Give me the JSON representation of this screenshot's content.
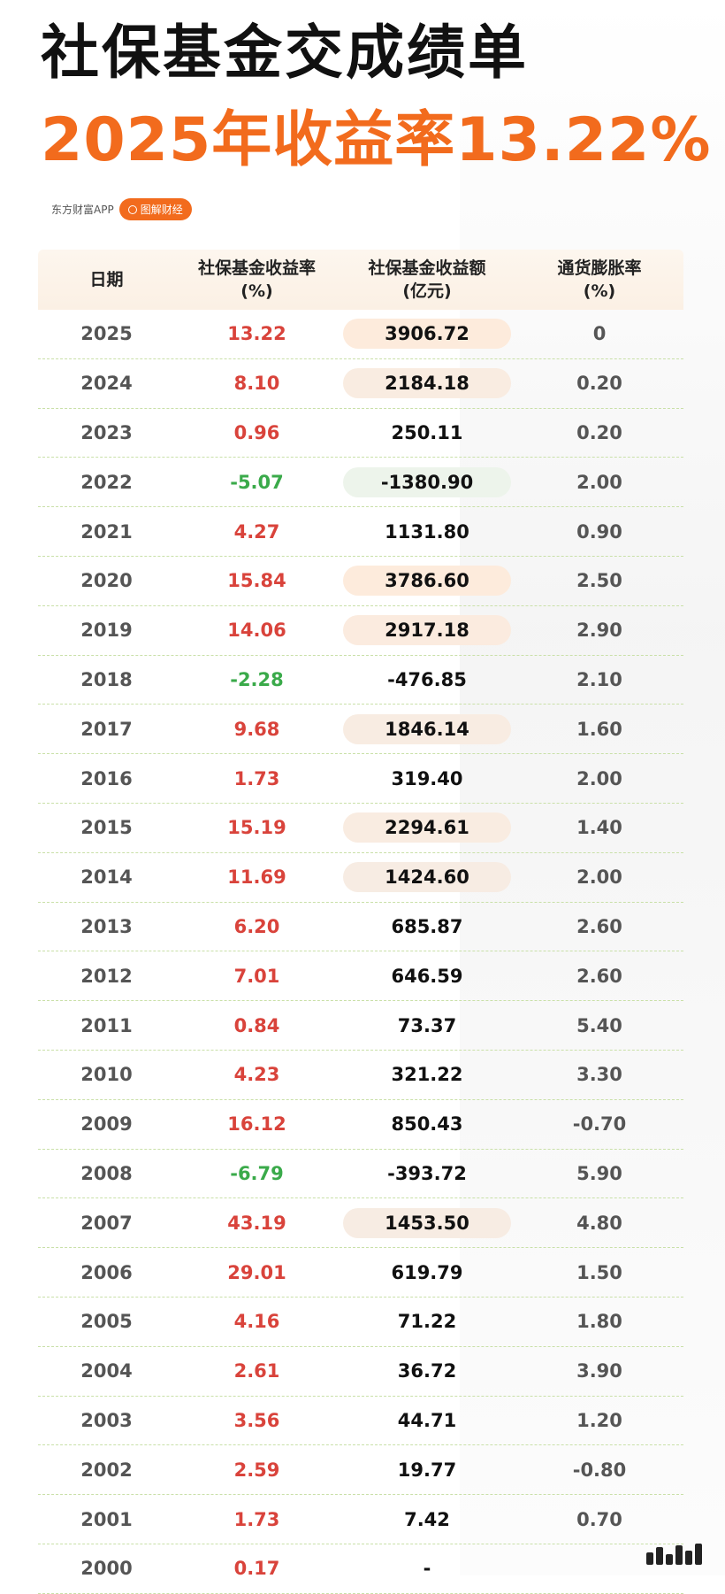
{
  "header": {
    "title": "社保基金交成绩单",
    "subtitle": "2025年收益率13.22%",
    "source": "东方财富APP",
    "tag": "图解财经"
  },
  "table": {
    "headers": [
      {
        "line1": "日期",
        "line2": ""
      },
      {
        "line1": "社保基金收益率",
        "line2": "(%)"
      },
      {
        "line1": "社保基金收益额",
        "line2": "(亿元)"
      },
      {
        "line1": "通货膨胀率",
        "line2": "(%)"
      }
    ]
  },
  "chart_data": {
    "type": "table",
    "title": "社保基金交成绩单",
    "subtitle": "2025年收益率13.22%",
    "columns": [
      "日期",
      "社保基金收益率(%)",
      "社保基金收益额(亿元)",
      "通货膨胀率(%)"
    ],
    "rows": [
      {
        "year": "2025",
        "rate": "13.22",
        "amount": "3906.72",
        "inflation": "0"
      },
      {
        "year": "2024",
        "rate": "8.10",
        "amount": "2184.18",
        "inflation": "0.20"
      },
      {
        "year": "2023",
        "rate": "0.96",
        "amount": "250.11",
        "inflation": "0.20"
      },
      {
        "year": "2022",
        "rate": "-5.07",
        "amount": "-1380.90",
        "inflation": "2.00"
      },
      {
        "year": "2021",
        "rate": "4.27",
        "amount": "1131.80",
        "inflation": "0.90"
      },
      {
        "year": "2020",
        "rate": "15.84",
        "amount": "3786.60",
        "inflation": "2.50"
      },
      {
        "year": "2019",
        "rate": "14.06",
        "amount": "2917.18",
        "inflation": "2.90"
      },
      {
        "year": "2018",
        "rate": "-2.28",
        "amount": "-476.85",
        "inflation": "2.10"
      },
      {
        "year": "2017",
        "rate": "9.68",
        "amount": "1846.14",
        "inflation": "1.60"
      },
      {
        "year": "2016",
        "rate": "1.73",
        "amount": "319.40",
        "inflation": "2.00"
      },
      {
        "year": "2015",
        "rate": "15.19",
        "amount": "2294.61",
        "inflation": "1.40"
      },
      {
        "year": "2014",
        "rate": "11.69",
        "amount": "1424.60",
        "inflation": "2.00"
      },
      {
        "year": "2013",
        "rate": "6.20",
        "amount": "685.87",
        "inflation": "2.60"
      },
      {
        "year": "2012",
        "rate": "7.01",
        "amount": "646.59",
        "inflation": "2.60"
      },
      {
        "year": "2011",
        "rate": "0.84",
        "amount": "73.37",
        "inflation": "5.40"
      },
      {
        "year": "2010",
        "rate": "4.23",
        "amount": "321.22",
        "inflation": "3.30"
      },
      {
        "year": "2009",
        "rate": "16.12",
        "amount": "850.43",
        "inflation": "-0.70"
      },
      {
        "year": "2008",
        "rate": "-6.79",
        "amount": "-393.72",
        "inflation": "5.90"
      },
      {
        "year": "2007",
        "rate": "43.19",
        "amount": "1453.50",
        "inflation": "4.80"
      },
      {
        "year": "2006",
        "rate": "29.01",
        "amount": "619.79",
        "inflation": "1.50"
      },
      {
        "year": "2005",
        "rate": "4.16",
        "amount": "71.22",
        "inflation": "1.80"
      },
      {
        "year": "2004",
        "rate": "2.61",
        "amount": "36.72",
        "inflation": "3.90"
      },
      {
        "year": "2003",
        "rate": "3.56",
        "amount": "44.71",
        "inflation": "1.20"
      },
      {
        "year": "2002",
        "rate": "2.59",
        "amount": "19.77",
        "inflation": "-0.80"
      },
      {
        "year": "2001",
        "rate": "1.73",
        "amount": "7.42",
        "inflation": "0.70"
      },
      {
        "year": "2000",
        "rate": "0.17",
        "amount": "-",
        "inflation": ""
      }
    ],
    "colors": {
      "positive": "#d9433b",
      "negative": "#3aaa4a",
      "highlight_positive": "#fdebdc",
      "highlight_negative": "#e9f6e6",
      "header_bg": "#fbf0e4",
      "accent": "#f26b1d"
    }
  },
  "watermark": {
    "icon": "weibo-signal-bars-icon"
  }
}
